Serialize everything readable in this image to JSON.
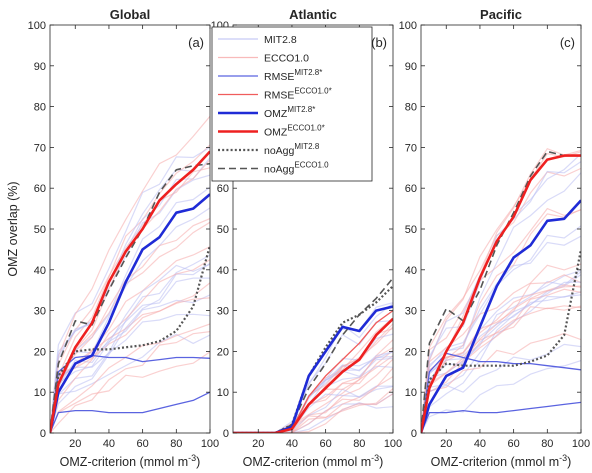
{
  "colors": {
    "mit": "#1f2bd6",
    "ecco": "#ee2020",
    "mit_light": "#b9bdf2",
    "ecco_light": "#f6a9a9",
    "mit_mid": "#5a63e0",
    "ecco_mid": "#f05c5c",
    "noagg_mit": "#555555",
    "noagg_ecco": "#555555"
  },
  "legend": [
    {
      "key": "mit_ens",
      "base": "MIT2.8",
      "sup": ""
    },
    {
      "key": "ecco_ens",
      "base": "ECCO1.0",
      "sup": ""
    },
    {
      "key": "rmse_mit",
      "base": "RMSE",
      "sup": "MIT2.8*"
    },
    {
      "key": "rmse_ecco",
      "base": "RMSE",
      "sup": "ECCO1.0*"
    },
    {
      "key": "omz_mit",
      "base": "OMZ",
      "sup": "MIT2.8*"
    },
    {
      "key": "omz_ecco",
      "base": "OMZ",
      "sup": "ECCO1.0*"
    },
    {
      "key": "noagg_mit",
      "base": "noAgg",
      "sup": "MIT2.8"
    },
    {
      "key": "noagg_ecco",
      "base": "noAgg",
      "sup": "ECCO1.0"
    }
  ],
  "chart_data": [
    {
      "type": "line",
      "title": "Global",
      "panel_label": "(a)",
      "ylabel": "OMZ overlap (%)",
      "xlabel": "OMZ-criterion (mmol m",
      "xlabel_sup": "-3",
      "xlabel_end": ")",
      "xlim": [
        5,
        100
      ],
      "ylim": [
        0,
        100
      ],
      "xticks": [
        20,
        40,
        60,
        80,
        100
      ],
      "yticks": [
        0,
        10,
        20,
        30,
        40,
        50,
        60,
        70,
        80,
        90,
        100
      ],
      "series": [
        {
          "key": "omz_mit",
          "x": [
            5,
            10,
            20,
            30,
            40,
            50,
            60,
            70,
            80,
            90,
            100
          ],
          "y": [
            0,
            10,
            17,
            19,
            27,
            37,
            45,
            48,
            54,
            55,
            58.5
          ]
        },
        {
          "key": "omz_ecco",
          "x": [
            5,
            10,
            20,
            30,
            40,
            50,
            60,
            70,
            80,
            90,
            100
          ],
          "y": [
            0,
            12,
            21,
            27,
            37,
            44.5,
            50,
            57,
            61,
            64.5,
            69
          ]
        },
        {
          "key": "rmse_mit",
          "x": [
            5,
            10,
            20,
            30,
            40,
            50,
            60,
            70,
            80,
            90,
            100
          ],
          "y": [
            0,
            15,
            18.5,
            19,
            18.5,
            18.5,
            17.5,
            18,
            18.5,
            18.5,
            18.3
          ]
        },
        {
          "key": "rmse_mit",
          "x": [
            5,
            10,
            20,
            30,
            40,
            50,
            60,
            70,
            80,
            90,
            100
          ],
          "y": [
            0,
            5,
            5.5,
            5.5,
            5,
            5,
            5,
            6,
            7,
            8,
            10
          ]
        },
        {
          "key": "noagg_mit",
          "x": [
            5,
            10,
            20,
            30,
            40,
            50,
            60,
            70,
            80,
            90,
            100
          ],
          "y": [
            0,
            14,
            20,
            20.5,
            20.5,
            21,
            21.5,
            22.5,
            25,
            31,
            46
          ]
        },
        {
          "key": "noagg_ecco",
          "x": [
            5,
            10,
            20,
            30,
            40,
            50,
            60,
            70,
            80,
            90,
            100
          ],
          "y": [
            0,
            17,
            27.5,
            26.5,
            35,
            43,
            50,
            59,
            64.5,
            65.5,
            66
          ]
        }
      ]
    },
    {
      "type": "line",
      "title": "Atlantic",
      "panel_label": "(b)",
      "ylabel": "",
      "xlabel": "OMZ-criterion (mmol m",
      "xlabel_sup": "-3",
      "xlabel_end": ")",
      "xlim": [
        5,
        100
      ],
      "ylim": [
        0,
        100
      ],
      "xticks": [
        20,
        40,
        60,
        80,
        100
      ],
      "yticks": [
        0,
        10,
        20,
        30,
        40,
        50,
        60,
        70,
        80,
        90,
        100
      ],
      "series": [
        {
          "key": "omz_mit",
          "x": [
            5,
            10,
            20,
            30,
            40,
            50,
            60,
            70,
            80,
            90,
            100
          ],
          "y": [
            0,
            0,
            0,
            0,
            1.5,
            14,
            20,
            26,
            25,
            30,
            31
          ]
        },
        {
          "key": "omz_ecco",
          "x": [
            5,
            10,
            20,
            30,
            40,
            50,
            60,
            70,
            80,
            90,
            100
          ],
          "y": [
            0,
            0,
            0,
            0,
            1,
            7,
            11,
            15,
            18,
            24,
            28
          ]
        },
        {
          "key": "rmse_ecco",
          "x": [
            5,
            10,
            20,
            30,
            40,
            50,
            60,
            70,
            80,
            90,
            100
          ],
          "y": [
            0,
            0,
            0,
            0,
            1,
            9,
            14,
            18,
            22,
            27,
            30
          ]
        },
        {
          "key": "noagg_mit",
          "x": [
            5,
            10,
            20,
            30,
            40,
            50,
            60,
            70,
            80,
            90,
            100
          ],
          "y": [
            0,
            0,
            0,
            0,
            2,
            14,
            21,
            27,
            29,
            32,
            36
          ]
        },
        {
          "key": "noagg_ecco",
          "x": [
            5,
            10,
            20,
            30,
            40,
            50,
            60,
            70,
            80,
            90,
            100
          ],
          "y": [
            0,
            0,
            0,
            0,
            2,
            11,
            17,
            24,
            29,
            33,
            38
          ]
        }
      ]
    },
    {
      "type": "line",
      "title": "Pacific",
      "panel_label": "(c)",
      "ylabel": "",
      "xlabel": "OMZ-criterion (mmol m",
      "xlabel_sup": "-3",
      "xlabel_end": ")",
      "xlim": [
        5,
        100
      ],
      "ylim": [
        0,
        100
      ],
      "xticks": [
        20,
        40,
        60,
        80,
        100
      ],
      "yticks": [
        0,
        10,
        20,
        30,
        40,
        50,
        60,
        70,
        80,
        90,
        100
      ],
      "series": [
        {
          "key": "omz_mit",
          "x": [
            5,
            10,
            20,
            30,
            40,
            50,
            60,
            70,
            80,
            90,
            100
          ],
          "y": [
            0,
            7,
            14,
            16,
            26,
            36,
            43,
            46,
            52,
            52.5,
            57
          ]
        },
        {
          "key": "omz_ecco",
          "x": [
            5,
            10,
            20,
            30,
            40,
            50,
            60,
            70,
            80,
            90,
            100
          ],
          "y": [
            0,
            11,
            20,
            27,
            38,
            47,
            53,
            62,
            67,
            68,
            68
          ]
        },
        {
          "key": "rmse_mit",
          "x": [
            5,
            10,
            20,
            30,
            40,
            50,
            60,
            70,
            80,
            90,
            100
          ],
          "y": [
            0,
            15,
            19.5,
            18.5,
            17.5,
            17.5,
            17,
            17,
            16.5,
            16,
            15.5
          ]
        },
        {
          "key": "rmse_mit",
          "x": [
            5,
            10,
            20,
            30,
            40,
            50,
            60,
            70,
            80,
            90,
            100
          ],
          "y": [
            0,
            5,
            5,
            5.5,
            5,
            5,
            5.5,
            6,
            6.5,
            7,
            7.5
          ]
        },
        {
          "key": "noagg_mit",
          "x": [
            5,
            10,
            20,
            30,
            40,
            50,
            60,
            70,
            80,
            90,
            100
          ],
          "y": [
            0,
            13,
            17,
            16.5,
            16.5,
            16.5,
            16.5,
            17.5,
            19,
            24,
            45
          ]
        },
        {
          "key": "noagg_ecco",
          "x": [
            5,
            10,
            20,
            30,
            40,
            50,
            60,
            70,
            80,
            90,
            100
          ],
          "y": [
            0,
            22,
            30.5,
            27.5,
            35,
            46,
            54,
            63,
            69,
            68,
            68
          ]
        }
      ]
    }
  ]
}
